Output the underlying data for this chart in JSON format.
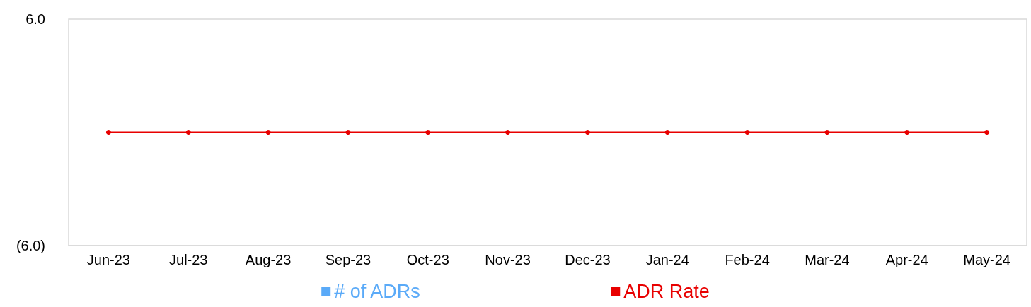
{
  "chart_data": {
    "type": "bar",
    "categories": [
      "Jun-23",
      "Jul-23",
      "Aug-23",
      "Sep-23",
      "Oct-23",
      "Nov-23",
      "Dec-23",
      "Jan-24",
      "Feb-24",
      "Mar-24",
      "Apr-24",
      "May-24"
    ],
    "series": [
      {
        "name": "# of ADRs",
        "color": "#5aaaf8",
        "values": [
          0,
          0,
          0,
          0,
          0,
          0,
          0,
          0,
          0,
          0,
          0,
          0
        ]
      },
      {
        "name": "ADR Rate",
        "type": "line",
        "color": "#e80000",
        "values": [
          0,
          0,
          0,
          0,
          0,
          0,
          0,
          0,
          0,
          0,
          0,
          0
        ]
      }
    ],
    "ylim": [
      -6,
      6
    ],
    "yticks": [
      {
        "value": -6,
        "label": "(6.0)"
      },
      {
        "value": 6,
        "label": "6.0"
      }
    ],
    "grid": false,
    "legend": "bottom",
    "marker": "circle",
    "line_style": "solid"
  }
}
